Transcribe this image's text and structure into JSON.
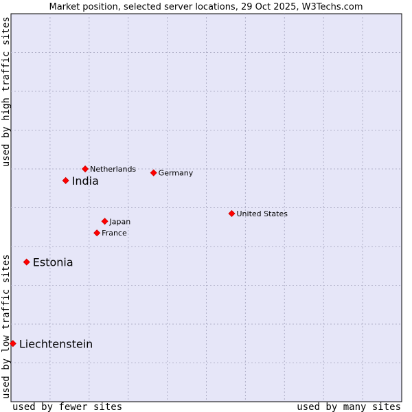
{
  "chart_data": {
    "type": "scatter",
    "title": "Market position, selected server locations, 29 Oct 2025, W3Techs.com",
    "xlabel_low": "used by fewer sites",
    "xlabel_high": "used by many sites",
    "ylabel_low": "used by low traffic sites",
    "ylabel_high": "used by high traffic sites",
    "xlim": [
      0,
      100
    ],
    "ylim": [
      0,
      100
    ],
    "grid": true,
    "colors": {
      "plot_bg": "#e6e6f8",
      "grid": "#b0b0c8",
      "point": "#ff0000",
      "point_stroke": "#cc0000"
    },
    "points": [
      {
        "label": "Netherlands",
        "x": 19.0,
        "y": 60.0,
        "emphasis": false
      },
      {
        "label": "Germany",
        "x": 36.5,
        "y": 59.0,
        "emphasis": false
      },
      {
        "label": "India",
        "x": 14.0,
        "y": 57.0,
        "emphasis": true
      },
      {
        "label": "United States",
        "x": 56.5,
        "y": 48.5,
        "emphasis": false
      },
      {
        "label": "Japan",
        "x": 24.0,
        "y": 46.5,
        "emphasis": false
      },
      {
        "label": "France",
        "x": 22.0,
        "y": 43.5,
        "emphasis": false
      },
      {
        "label": "Estonia",
        "x": 4.0,
        "y": 36.0,
        "emphasis": true
      },
      {
        "label": "Liechtenstein",
        "x": 0.5,
        "y": 15.0,
        "emphasis": true
      }
    ]
  }
}
